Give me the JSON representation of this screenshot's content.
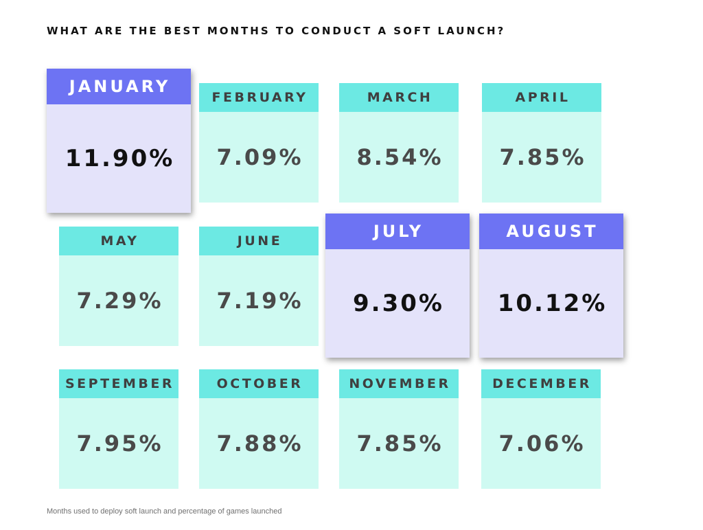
{
  "title": "WHAT ARE THE BEST MONTHS TO CONDUCT A SOFT LAUNCH?",
  "caption": "Months used to deploy soft launch and percentage of games launched",
  "colors": {
    "highlight_header": "#6d73f3",
    "highlight_body": "#e4e3fa",
    "normal_header": "#6ce9e3",
    "normal_body": "#cffaf2"
  },
  "chart_data": {
    "type": "table",
    "title": "WHAT ARE THE BEST MONTHS TO CONDUCT A SOFT LAUNCH?",
    "unit": "%",
    "highlighted": [
      "JANUARY",
      "JULY",
      "AUGUST"
    ],
    "months": [
      {
        "label": "JANUARY",
        "value": 11.9,
        "display": "11.90%"
      },
      {
        "label": "FEBRUARY",
        "value": 7.09,
        "display": "7.09%"
      },
      {
        "label": "MARCH",
        "value": 8.54,
        "display": "8.54%"
      },
      {
        "label": "APRIL",
        "value": 7.85,
        "display": "7.85%"
      },
      {
        "label": "MAY",
        "value": 7.29,
        "display": "7.29%"
      },
      {
        "label": "JUNE",
        "value": 7.19,
        "display": "7.19%"
      },
      {
        "label": "JULY",
        "value": 9.3,
        "display": "9.30%"
      },
      {
        "label": "AUGUST",
        "value": 10.12,
        "display": "10.12%"
      },
      {
        "label": "SEPTEMBER",
        "value": 7.95,
        "display": "7.95%"
      },
      {
        "label": "OCTOBER",
        "value": 7.88,
        "display": "7.88%"
      },
      {
        "label": "NOVEMBER",
        "value": 7.85,
        "display": "7.85%"
      },
      {
        "label": "DECEMBER",
        "value": 7.06,
        "display": "7.06%"
      }
    ]
  }
}
